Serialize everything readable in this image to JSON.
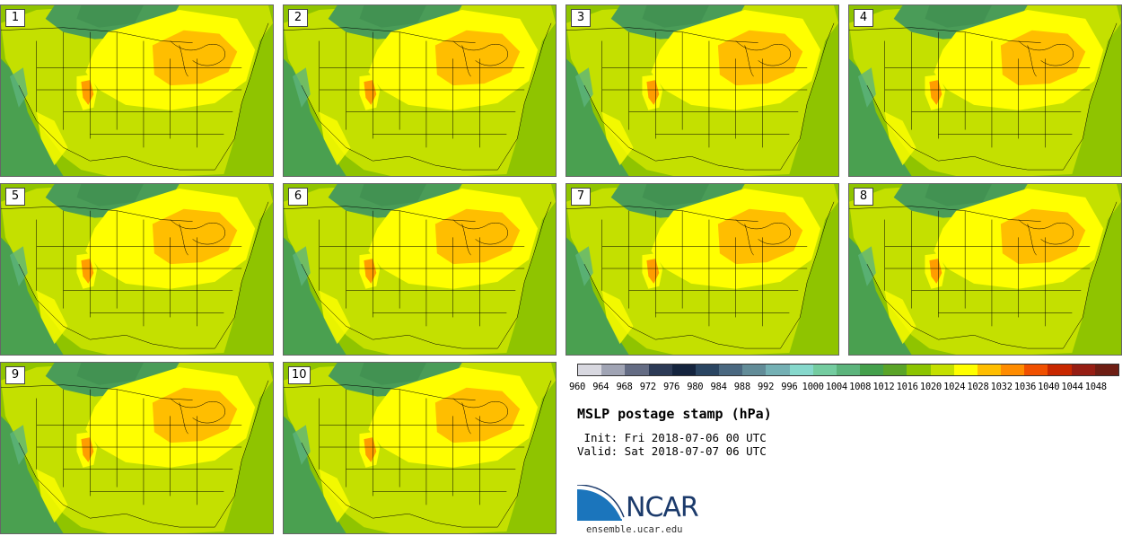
{
  "panels": [
    {
      "label": "1"
    },
    {
      "label": "2"
    },
    {
      "label": "3"
    },
    {
      "label": "4"
    },
    {
      "label": "5"
    },
    {
      "label": "6"
    },
    {
      "label": "7"
    },
    {
      "label": "8"
    },
    {
      "label": "9"
    },
    {
      "label": "10"
    }
  ],
  "colorbar": {
    "colors": [
      "#d8d8e0",
      "#a0a4b4",
      "#646c84",
      "#2c3a56",
      "#14243e",
      "#2a4562",
      "#4a6880",
      "#628c98",
      "#74b0b4",
      "#86d8cc",
      "#74cca0",
      "#5cb47c",
      "#44a04c",
      "#5aa428",
      "#8cc400",
      "#c4e000",
      "#ffff00",
      "#ffbe00",
      "#ff8c00",
      "#f05000",
      "#c82800",
      "#961e14",
      "#6e1e14"
    ],
    "ticks": [
      "960",
      "964",
      "968",
      "972",
      "976",
      "980",
      "984",
      "988",
      "992",
      "996",
      "1000",
      "1004",
      "1008",
      "1012",
      "1016",
      "1020",
      "1024",
      "1028",
      "1032",
      "1036",
      "1040",
      "1044",
      "1048"
    ]
  },
  "title": "MSLP postage stamp (hPa)",
  "init_line": " Init: Fri 2018-07-06 00 UTC",
  "valid_line": "Valid: Sat 2018-07-07 06 UTC",
  "logo": {
    "name": "NCAR",
    "colors": {
      "blue": "#1b75bc",
      "navy": "#1b3a6b"
    }
  },
  "site": "ensemble.ucar.edu",
  "map_colors": {
    "ocean": "#8fc400",
    "ocean_west": "#4aa050",
    "mid": "#c4e000",
    "high": "#ffff00",
    "high_core": "#ffbe00",
    "peak": "#ff8c00",
    "canada_low": "#4a9c58"
  }
}
